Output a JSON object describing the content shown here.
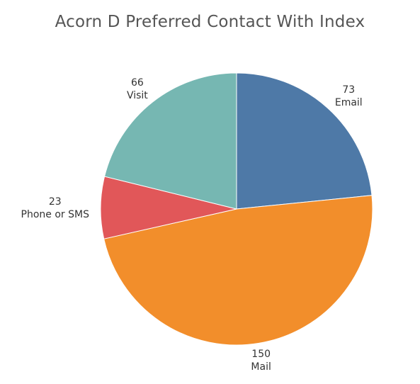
{
  "chart_data": {
    "type": "pie",
    "title": "Acorn D Preferred Contact With Index",
    "slices": [
      {
        "name": "Email",
        "value": 73,
        "color": "#4e79a7"
      },
      {
        "name": "Mail",
        "value": 150,
        "color": "#f28e2b"
      },
      {
        "name": "Phone or SMS",
        "value": 23,
        "color": "#e15759"
      },
      {
        "name": "Visit",
        "value": 66,
        "color": "#76b7b2"
      }
    ],
    "start_angle": "12 o'clock",
    "direction": "clockwise",
    "legend": "none"
  }
}
